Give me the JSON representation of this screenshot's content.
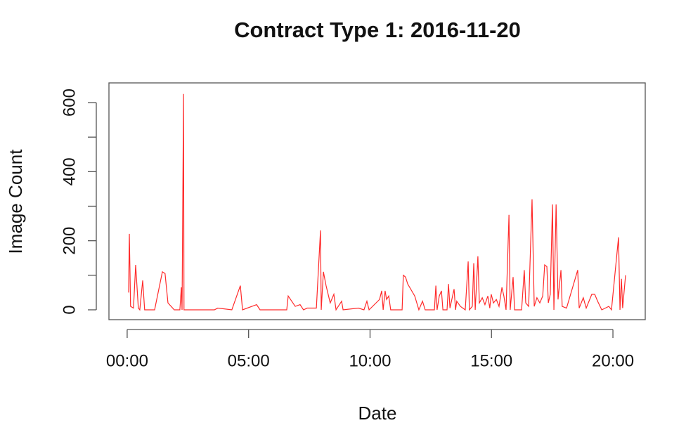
{
  "chart_data": {
    "type": "line",
    "title": "Contract Type 1: 2016-11-20",
    "x_label": "Date",
    "y_label": "Image Count",
    "xlim": [
      -0.75,
      21.33
    ],
    "xticks": [
      {
        "value": 0,
        "label": "00:00"
      },
      {
        "value": 5,
        "label": "05:00"
      },
      {
        "value": 10,
        "label": "10:00"
      },
      {
        "value": 15,
        "label": "15:00"
      },
      {
        "value": 20,
        "label": "20:00"
      }
    ],
    "ylim": [
      -28.5,
      657
    ],
    "yticks": [
      0,
      200,
      400,
      600
    ],
    "yminorticks": [
      100,
      300,
      500
    ],
    "color": "#ff2a2a",
    "x": [
      0.06,
      0.09,
      0.14,
      0.26,
      0.35,
      0.46,
      0.52,
      0.64,
      0.72,
      1.13,
      1.45,
      1.56,
      1.68,
      1.94,
      2.17,
      2.23,
      2.26,
      2.32,
      2.34,
      3.59,
      3.73,
      4.31,
      4.66,
      4.75,
      5.33,
      5.47,
      6.57,
      6.63,
      6.92,
      7.12,
      7.26,
      7.41,
      7.79,
      7.96,
      7.99,
      8.08,
      8.19,
      8.36,
      8.51,
      8.6,
      8.83,
      8.89,
      9.52,
      9.75,
      9.87,
      9.96,
      10.39,
      10.48,
      10.54,
      10.62,
      10.68,
      10.77,
      10.85,
      11.32,
      11.37,
      11.46,
      11.55,
      11.84,
      12.01,
      12.16,
      12.27,
      12.65,
      12.71,
      12.76,
      12.85,
      12.94,
      13.0,
      13.17,
      13.23,
      13.29,
      13.46,
      13.52,
      13.57,
      13.72,
      13.92,
      14.04,
      14.09,
      14.21,
      14.27,
      14.33,
      14.44,
      14.5,
      14.62,
      14.73,
      14.85,
      14.93,
      14.99,
      15.08,
      15.2,
      15.31,
      15.43,
      15.51,
      15.6,
      15.72,
      15.77,
      15.89,
      15.95,
      16.24,
      16.35,
      16.41,
      16.53,
      16.67,
      16.76,
      16.87,
      16.99,
      17.11,
      17.19,
      17.28,
      17.34,
      17.42,
      17.51,
      17.57,
      17.66,
      17.74,
      17.86,
      17.91,
      18.09,
      18.55,
      18.61,
      18.78,
      18.9,
      19.13,
      19.25,
      19.37,
      19.54,
      19.83,
      19.94,
      20.23,
      20.29,
      20.35,
      20.4,
      20.52
    ],
    "values": [
      50,
      220,
      10,
      5,
      130,
      5,
      0,
      85,
      0,
      0,
      110,
      105,
      20,
      0,
      0,
      65,
      0,
      625,
      0,
      0,
      5,
      0,
      70,
      0,
      15,
      0,
      0,
      40,
      10,
      15,
      0,
      5,
      5,
      230,
      0,
      110,
      70,
      20,
      45,
      0,
      25,
      0,
      5,
      0,
      25,
      0,
      30,
      55,
      0,
      55,
      30,
      40,
      0,
      0,
      100,
      95,
      75,
      40,
      0,
      25,
      0,
      0,
      70,
      0,
      40,
      55,
      0,
      0,
      75,
      5,
      60,
      0,
      25,
      10,
      0,
      140,
      0,
      10,
      135,
      0,
      155,
      20,
      35,
      15,
      40,
      5,
      45,
      20,
      30,
      10,
      65,
      40,
      0,
      275,
      0,
      95,
      0,
      0,
      115,
      20,
      10,
      320,
      10,
      35,
      20,
      40,
      130,
      125,
      20,
      45,
      305,
      0,
      305,
      30,
      115,
      10,
      5,
      115,
      5,
      35,
      5,
      45,
      45,
      25,
      0,
      10,
      0,
      210,
      0,
      90,
      5,
      100
    ]
  }
}
